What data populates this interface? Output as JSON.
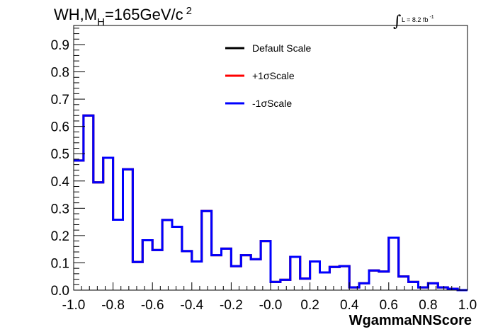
{
  "chart_data": {
    "type": "line",
    "title_main": "WH,M",
    "title_sub": "H",
    "title_rest": "=165GeV/c",
    "title_sup": "2",
    "lumi": {
      "integral_symbol": "∫",
      "text": "L = 8.2 fb",
      "sup": "-1"
    },
    "xlabel": "WgammaNNScore",
    "ylabel": "",
    "xlim": [
      -1.0,
      1.0
    ],
    "ylim": [
      0.0,
      0.97
    ],
    "x_ticks": [
      {
        "value": -1.0,
        "label": "-1.0"
      },
      {
        "value": -0.8,
        "label": "-0.8"
      },
      {
        "value": -0.6,
        "label": "-0.6"
      },
      {
        "value": -0.4,
        "label": "-0.4"
      },
      {
        "value": -0.2,
        "label": "-0.2"
      },
      {
        "value": 0.0,
        "label": "-0.0"
      },
      {
        "value": 0.2,
        "label": "0.2"
      },
      {
        "value": 0.4,
        "label": "0.4"
      },
      {
        "value": 0.6,
        "label": "0.6"
      },
      {
        "value": 0.8,
        "label": "0.8"
      },
      {
        "value": 1.0,
        "label": "1.0"
      }
    ],
    "y_ticks": [
      {
        "value": 0.0,
        "label": "0.0"
      },
      {
        "value": 0.1,
        "label": "0.1"
      },
      {
        "value": 0.2,
        "label": "0.2"
      },
      {
        "value": 0.3,
        "label": "0.3"
      },
      {
        "value": 0.4,
        "label": "0.4"
      },
      {
        "value": 0.5,
        "label": "0.5"
      },
      {
        "value": 0.6,
        "label": "0.6"
      },
      {
        "value": 0.7,
        "label": "0.7"
      },
      {
        "value": 0.8,
        "label": "0.8"
      },
      {
        "value": 0.9,
        "label": "0.9"
      }
    ],
    "grid": false,
    "legend_position": "top-center",
    "bin_edges_start": -1.0,
    "bin_width": 0.05,
    "series": [
      {
        "name": "Default Scale",
        "color": "#000000",
        "values": [
          0.475,
          0.64,
          0.395,
          0.485,
          0.258,
          0.443,
          0.103,
          0.183,
          0.147,
          0.257,
          0.232,
          0.143,
          0.105,
          0.29,
          0.128,
          0.152,
          0.088,
          0.128,
          0.113,
          0.18,
          0.03,
          0.038,
          0.122,
          0.042,
          0.105,
          0.065,
          0.085,
          0.088,
          0.01,
          0.025,
          0.072,
          0.068,
          0.192,
          0.05,
          0.03,
          0.01,
          0.025,
          0.01,
          0.005,
          0.0
        ]
      },
      {
        "name": "+1σScale",
        "color": "#ff0000",
        "values": [
          0.475,
          0.64,
          0.395,
          0.485,
          0.258,
          0.443,
          0.103,
          0.183,
          0.147,
          0.257,
          0.232,
          0.143,
          0.105,
          0.29,
          0.128,
          0.152,
          0.088,
          0.128,
          0.113,
          0.18,
          0.03,
          0.038,
          0.122,
          0.042,
          0.105,
          0.065,
          0.085,
          0.088,
          0.01,
          0.025,
          0.072,
          0.068,
          0.192,
          0.05,
          0.03,
          0.01,
          0.025,
          0.01,
          0.005,
          0.0
        ]
      },
      {
        "name": "-1σScale",
        "color": "#0000ff",
        "values": [
          0.475,
          0.64,
          0.395,
          0.485,
          0.258,
          0.443,
          0.103,
          0.183,
          0.147,
          0.257,
          0.232,
          0.143,
          0.105,
          0.29,
          0.128,
          0.152,
          0.088,
          0.128,
          0.113,
          0.18,
          0.03,
          0.038,
          0.122,
          0.042,
          0.105,
          0.065,
          0.085,
          0.088,
          0.01,
          0.025,
          0.072,
          0.068,
          0.192,
          0.05,
          0.03,
          0.01,
          0.025,
          0.01,
          0.005,
          0.0
        ]
      }
    ]
  }
}
